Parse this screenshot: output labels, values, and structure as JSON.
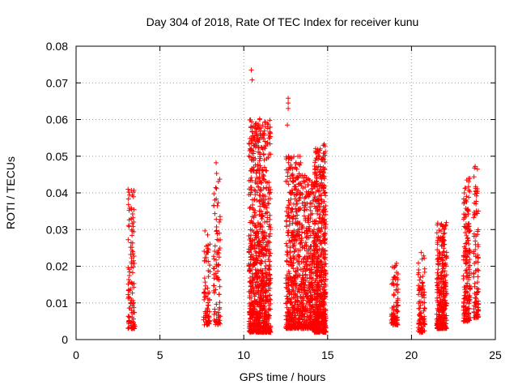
{
  "chart_data": {
    "type": "scatter",
    "title": "Day 304 of 2018, Rate Of TEC Index for receiver kunu",
    "xlabel": "GPS time / hours",
    "ylabel": "ROTI / TECUs",
    "xlim": [
      0,
      25
    ],
    "ylim": [
      0,
      0.08
    ],
    "xticks": [
      0,
      5,
      10,
      15,
      20,
      25
    ],
    "yticks": [
      0,
      0.01,
      0.02,
      0.03,
      0.04,
      0.05,
      0.06,
      0.07,
      0.08
    ],
    "xtick_labels": [
      "0",
      "5",
      "10",
      "15",
      "20",
      "25"
    ],
    "ytick_labels": [
      "0",
      "0.01",
      "0.02",
      "0.03",
      "0.04",
      "0.05",
      "0.06",
      "0.07",
      "0.08"
    ],
    "grid": true,
    "marker": "+",
    "marker_color": "#ff0000",
    "clusters": [
      {
        "x_start": 3.1,
        "x_end": 3.5,
        "y_min": 0.003,
        "y_max": 0.041,
        "n": 120
      },
      {
        "x_start": 7.6,
        "x_end": 8.0,
        "y_min": 0.004,
        "y_max": 0.032,
        "n": 80
      },
      {
        "x_start": 8.2,
        "x_end": 8.6,
        "y_min": 0.004,
        "y_max": 0.048,
        "n": 90
      },
      {
        "x_start": 10.3,
        "x_end": 11.6,
        "y_min": 0.002,
        "y_max": 0.06,
        "n": 900
      },
      {
        "x_start": 12.5,
        "x_end": 13.4,
        "y_min": 0.003,
        "y_max": 0.05,
        "n": 450
      },
      {
        "x_start": 13.4,
        "x_end": 14.2,
        "y_min": 0.003,
        "y_max": 0.045,
        "n": 380
      },
      {
        "x_start": 14.2,
        "x_end": 14.9,
        "y_min": 0.002,
        "y_max": 0.053,
        "n": 620
      },
      {
        "x_start": 18.8,
        "x_end": 19.2,
        "y_min": 0.004,
        "y_max": 0.021,
        "n": 90
      },
      {
        "x_start": 20.4,
        "x_end": 20.8,
        "y_min": 0.002,
        "y_max": 0.024,
        "n": 100
      },
      {
        "x_start": 21.5,
        "x_end": 22.1,
        "y_min": 0.003,
        "y_max": 0.032,
        "n": 300
      },
      {
        "x_start": 23.1,
        "x_end": 23.5,
        "y_min": 0.005,
        "y_max": 0.044,
        "n": 180
      },
      {
        "x_start": 23.7,
        "x_end": 24.0,
        "y_min": 0.006,
        "y_max": 0.047,
        "n": 100
      }
    ],
    "outliers": [
      {
        "x": 10.45,
        "y": 0.0735
      },
      {
        "x": 10.5,
        "y": 0.0708
      },
      {
        "x": 10.5,
        "y": 0.0568
      },
      {
        "x": 10.95,
        "y": 0.0602
      },
      {
        "x": 11.3,
        "y": 0.058
      },
      {
        "x": 12.65,
        "y": 0.0658
      },
      {
        "x": 12.65,
        "y": 0.0645
      },
      {
        "x": 12.65,
        "y": 0.063
      },
      {
        "x": 12.6,
        "y": 0.0585
      },
      {
        "x": 3.3,
        "y": 0.0407
      },
      {
        "x": 8.35,
        "y": 0.0482
      },
      {
        "x": 14.8,
        "y": 0.0533
      },
      {
        "x": 23.8,
        "y": 0.0472
      },
      {
        "x": 23.3,
        "y": 0.0435
      }
    ]
  }
}
